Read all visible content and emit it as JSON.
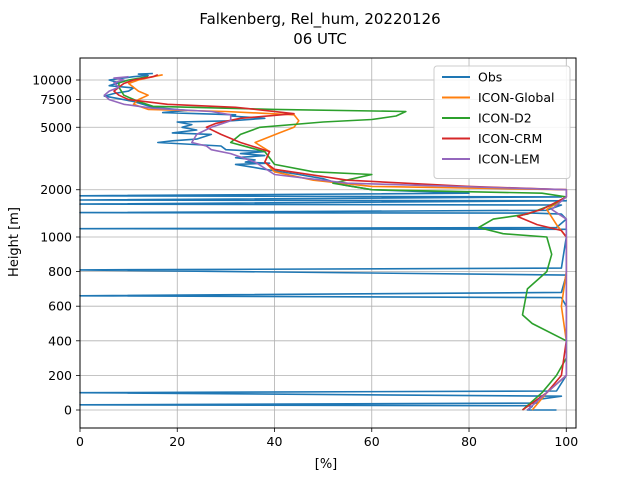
{
  "chart_data": {
    "type": "line",
    "title": "Falkenberg, Rel_hum, 20220126",
    "subtitle": "06 UTC",
    "xlabel": "[%]",
    "ylabel": "Height [m]",
    "xlim": [
      0,
      102
    ],
    "x_ticks": [
      0,
      20,
      40,
      60,
      80,
      100
    ],
    "y_ticks": [
      0,
      200,
      400,
      600,
      800,
      1000,
      2000,
      5000,
      7500,
      10000
    ],
    "y_scale": "piecewise: linear 0-1000 m, logarithmic above 1000 m",
    "ylim": [
      -100,
      13000
    ],
    "grid": true,
    "legend_position": "top-right",
    "series": [
      {
        "name": "Obs",
        "color": "#1f77b4",
        "points": [
          [
            98,
            0
          ],
          [
            92,
            0
          ],
          [
            93,
            20
          ],
          [
            92,
            25
          ],
          [
            0,
            30
          ],
          [
            94,
            40
          ],
          [
            94,
            60
          ],
          [
            99,
            80
          ],
          [
            0,
            100
          ],
          [
            98,
            110
          ],
          [
            100,
            200
          ],
          [
            100,
            400
          ],
          [
            100,
            600
          ],
          [
            99,
            650
          ],
          [
            0,
            660
          ],
          [
            99,
            680
          ],
          [
            100,
            780
          ],
          [
            0,
            810
          ],
          [
            99,
            820
          ],
          [
            100,
            1000
          ],
          [
            100,
            1120
          ],
          [
            0,
            1130
          ],
          [
            98,
            1150
          ],
          [
            100,
            1300
          ],
          [
            99,
            1400
          ],
          [
            93,
            1420
          ],
          [
            0,
            1430
          ],
          [
            96,
            1480
          ],
          [
            99,
            1600
          ],
          [
            0,
            1620
          ],
          [
            100,
            1700
          ],
          [
            0,
            1720
          ],
          [
            99,
            1800
          ],
          [
            0,
            1830
          ],
          [
            80,
            1900
          ],
          [
            60,
            2000
          ],
          [
            54,
            2150
          ],
          [
            52,
            2250
          ],
          [
            50,
            2350
          ],
          [
            45,
            2500
          ],
          [
            38,
            2700
          ],
          [
            35,
            2800
          ],
          [
            32,
            2900
          ],
          [
            39,
            2950
          ],
          [
            34,
            3000
          ],
          [
            36,
            3100
          ],
          [
            32,
            3200
          ],
          [
            38,
            3300
          ],
          [
            33,
            3400
          ],
          [
            38,
            3500
          ],
          [
            30,
            3600
          ],
          [
            29,
            3800
          ],
          [
            16,
            4000
          ],
          [
            19,
            4100
          ],
          [
            24,
            4200
          ],
          [
            27,
            4500
          ],
          [
            19,
            4600
          ],
          [
            24,
            4800
          ],
          [
            21,
            5000
          ],
          [
            23,
            5200
          ],
          [
            20,
            5400
          ],
          [
            31,
            5500
          ],
          [
            38,
            5700
          ],
          [
            31,
            5900
          ],
          [
            32,
            6000
          ],
          [
            17,
            6200
          ],
          [
            22,
            6400
          ],
          [
            15,
            6700
          ],
          [
            13,
            7000
          ],
          [
            11,
            7300
          ],
          [
            8,
            7600
          ],
          [
            5,
            7900
          ],
          [
            7,
            8200
          ],
          [
            10,
            8500
          ],
          [
            11,
            8900
          ],
          [
            6,
            9200
          ],
          [
            8,
            9600
          ],
          [
            6,
            10000
          ],
          [
            9,
            10300
          ],
          [
            11,
            10500
          ],
          [
            14,
            10700
          ],
          [
            12,
            10900
          ],
          [
            15,
            11000
          ]
        ]
      },
      {
        "name": "ICON-Global",
        "color": "#ff7f0e",
        "points": [
          [
            93,
            0
          ],
          [
            96,
            100
          ],
          [
            100,
            200
          ],
          [
            100,
            400
          ],
          [
            99,
            600
          ],
          [
            100,
            800
          ],
          [
            100,
            1000
          ],
          [
            98,
            1200
          ],
          [
            96,
            1500
          ],
          [
            100,
            1800
          ],
          [
            100,
            2000
          ],
          [
            60,
            2100
          ],
          [
            48,
            2300
          ],
          [
            40,
            2600
          ],
          [
            38,
            3000
          ],
          [
            39,
            3500
          ],
          [
            36,
            4000
          ],
          [
            41,
            4600
          ],
          [
            44,
            5000
          ],
          [
            45,
            5500
          ],
          [
            44,
            6000
          ],
          [
            30,
            6300
          ],
          [
            14,
            6500
          ],
          [
            11,
            7000
          ],
          [
            12,
            7500
          ],
          [
            14,
            8000
          ],
          [
            12,
            8500
          ],
          [
            11,
            9000
          ],
          [
            10,
            9500
          ],
          [
            12,
            10000
          ],
          [
            15,
            10500
          ],
          [
            17,
            10800
          ]
        ]
      },
      {
        "name": "ICON-D2",
        "color": "#2ca02c",
        "points": [
          [
            91,
            0
          ],
          [
            95,
            100
          ],
          [
            98,
            200
          ],
          [
            100,
            300
          ],
          [
            100,
            400
          ],
          [
            93,
            500
          ],
          [
            91,
            550
          ],
          [
            92,
            700
          ],
          [
            96,
            800
          ],
          [
            97,
            900
          ],
          [
            96,
            1000
          ],
          [
            87,
            1050
          ],
          [
            82,
            1150
          ],
          [
            85,
            1300
          ],
          [
            92,
            1400
          ],
          [
            97,
            1600
          ],
          [
            100,
            1800
          ],
          [
            95,
            1900
          ],
          [
            60,
            2000
          ],
          [
            52,
            2200
          ],
          [
            60,
            2500
          ],
          [
            48,
            2600
          ],
          [
            40,
            2900
          ],
          [
            38,
            3500
          ],
          [
            31,
            4000
          ],
          [
            33,
            4500
          ],
          [
            37,
            5000
          ],
          [
            50,
            5400
          ],
          [
            60,
            5600
          ],
          [
            65,
            5900
          ],
          [
            67,
            6300
          ],
          [
            40,
            6500
          ],
          [
            15,
            6800
          ],
          [
            12,
            7300
          ],
          [
            9,
            8000
          ],
          [
            8,
            9000
          ],
          [
            8,
            9600
          ],
          [
            10,
            10000
          ],
          [
            14,
            10500
          ]
        ]
      },
      {
        "name": "ICON-CRM",
        "color": "#d62728",
        "points": [
          [
            91,
            0
          ],
          [
            96,
            100
          ],
          [
            99,
            200
          ],
          [
            100,
            400
          ],
          [
            100,
            600
          ],
          [
            100,
            800
          ],
          [
            100,
            1000
          ],
          [
            99,
            1100
          ],
          [
            94,
            1200
          ],
          [
            90,
            1350
          ],
          [
            95,
            1500
          ],
          [
            100,
            1800
          ],
          [
            100,
            2000
          ],
          [
            80,
            2100
          ],
          [
            55,
            2300
          ],
          [
            40,
            2700
          ],
          [
            38,
            3000
          ],
          [
            39,
            3500
          ],
          [
            33,
            4000
          ],
          [
            29,
            4500
          ],
          [
            26,
            5000
          ],
          [
            28,
            5300
          ],
          [
            33,
            5700
          ],
          [
            44,
            6100
          ],
          [
            38,
            6400
          ],
          [
            32,
            6700
          ],
          [
            18,
            7000
          ],
          [
            10,
            7500
          ],
          [
            8,
            8000
          ],
          [
            7,
            8500
          ],
          [
            8,
            9000
          ],
          [
            9,
            9500
          ],
          [
            11,
            10000
          ],
          [
            15,
            10500
          ],
          [
            16,
            10800
          ]
        ]
      },
      {
        "name": "ICON-LEM",
        "color": "#9467bd",
        "points": [
          [
            92,
            0
          ],
          [
            96,
            100
          ],
          [
            100,
            200
          ],
          [
            100,
            400
          ],
          [
            100,
            600
          ],
          [
            100,
            800
          ],
          [
            100,
            1000
          ],
          [
            100,
            1300
          ],
          [
            97,
            1500
          ],
          [
            100,
            1800
          ],
          [
            100,
            2000
          ],
          [
            55,
            2200
          ],
          [
            40,
            2500
          ],
          [
            36,
            3000
          ],
          [
            31,
            3400
          ],
          [
            27,
            3600
          ],
          [
            26,
            3800
          ],
          [
            23,
            4000
          ],
          [
            24,
            4500
          ],
          [
            27,
            5000
          ],
          [
            31,
            5500
          ],
          [
            31,
            6000
          ],
          [
            27,
            6300
          ],
          [
            15,
            6600
          ],
          [
            9,
            7000
          ],
          [
            6,
            7500
          ],
          [
            5,
            8000
          ],
          [
            6,
            8500
          ],
          [
            8,
            9000
          ],
          [
            7,
            9600
          ],
          [
            9,
            10000
          ],
          [
            7,
            10300
          ],
          [
            10,
            10500
          ]
        ]
      }
    ]
  }
}
